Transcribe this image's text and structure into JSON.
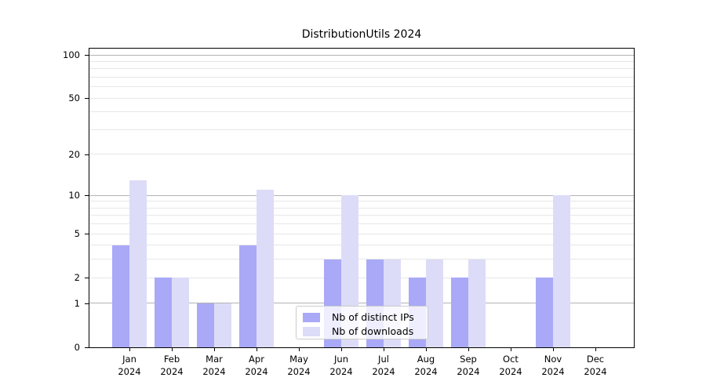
{
  "title": "DistributionUtils 2024",
  "chart_data": {
    "type": "bar",
    "title": "DistributionUtils 2024",
    "x_month_labels": [
      "Jan",
      "Feb",
      "Mar",
      "Apr",
      "May",
      "Jun",
      "Jul",
      "Aug",
      "Sep",
      "Oct",
      "Nov",
      "Dec"
    ],
    "x_year_label": "2024",
    "series": [
      {
        "name": "Nb of distinct IPs",
        "color": "#a9a9f8",
        "values": [
          4,
          2,
          1,
          4,
          0,
          3,
          3,
          2,
          2,
          0,
          2,
          0
        ]
      },
      {
        "name": "Nb of downloads",
        "color": "#dcdcf8",
        "values": [
          13,
          2,
          1,
          11,
          0,
          10,
          3,
          3,
          3,
          0,
          10,
          0
        ]
      }
    ],
    "y_scale": "log1p",
    "ylim": [
      0,
      100
    ],
    "y_tick_labels": [
      "0",
      "1",
      "2",
      "5",
      "10",
      "20",
      "50",
      "100"
    ],
    "y_tick_values": [
      0,
      1,
      2,
      5,
      10,
      20,
      50,
      100
    ],
    "major_gridlines": [
      1,
      10,
      100
    ],
    "minor_gridlines": [
      2,
      3,
      4,
      5,
      6,
      7,
      8,
      9,
      20,
      30,
      40,
      50,
      60,
      70,
      80,
      90
    ],
    "grid": true,
    "legend_position": "lower center"
  },
  "colors": {
    "bar_distinct_ips": "#a9a9f8",
    "bar_downloads": "#dcdcf8",
    "major_gridline": "#b3b3b3",
    "minor_gridline": "#e7e7e7",
    "axis": "#000000",
    "background": "#ffffff"
  }
}
